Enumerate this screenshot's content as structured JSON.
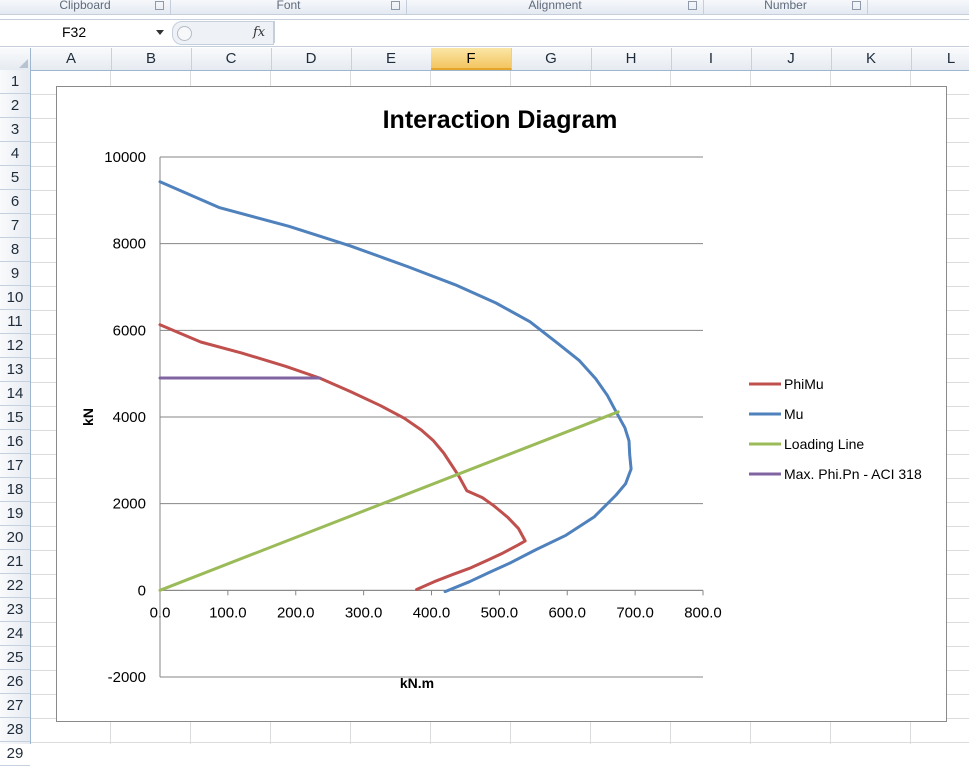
{
  "ribbon": {
    "groups": [
      "Clipboard",
      "Font",
      "Alignment",
      "Number"
    ]
  },
  "formula_bar": {
    "name_box": "F32",
    "fx_label": "fx",
    "formula": ""
  },
  "sheet": {
    "columns": [
      "A",
      "B",
      "C",
      "D",
      "E",
      "F",
      "G",
      "H",
      "I",
      "J",
      "K",
      "L"
    ],
    "selected_column": "F",
    "rows": [
      "1",
      "2",
      "3",
      "4",
      "5",
      "6",
      "7",
      "8",
      "9",
      "10",
      "11",
      "12",
      "13",
      "14",
      "15",
      "16",
      "17",
      "18",
      "19",
      "20",
      "21",
      "22",
      "23",
      "24",
      "25",
      "26",
      "27",
      "28",
      "29"
    ]
  },
  "chart_data": {
    "type": "line",
    "title": "Interaction Diagram",
    "xlabel": "kN.m",
    "ylabel": "kN",
    "xlim": [
      0,
      800
    ],
    "ylim": [
      -2000,
      10000
    ],
    "x_ticks": [
      "0.0",
      "100.0",
      "200.0",
      "300.0",
      "400.0",
      "500.0",
      "600.0",
      "700.0",
      "800.0"
    ],
    "y_ticks": [
      "10000",
      "8000",
      "6000",
      "4000",
      "2000",
      "0",
      "-2000"
    ],
    "grid": "horizontal major gridlines",
    "legend_position": "right",
    "series": [
      {
        "name": "PhiMu",
        "color": "#c0504d",
        "points": [
          [
            0,
            6130
          ],
          [
            60,
            5730
          ],
          [
            120,
            5480
          ],
          [
            185,
            5170
          ],
          [
            235,
            4900
          ],
          [
            280,
            4590
          ],
          [
            325,
            4260
          ],
          [
            360,
            3970
          ],
          [
            385,
            3700
          ],
          [
            403,
            3450
          ],
          [
            418,
            3170
          ],
          [
            430,
            2880
          ],
          [
            440,
            2640
          ],
          [
            452,
            2300
          ],
          [
            475,
            2140
          ],
          [
            492,
            1950
          ],
          [
            512,
            1690
          ],
          [
            528,
            1430
          ],
          [
            538,
            1140
          ],
          [
            528,
            1050
          ],
          [
            505,
            860
          ],
          [
            482,
            690
          ],
          [
            458,
            520
          ],
          [
            432,
            370
          ],
          [
            404,
            200
          ],
          [
            378,
            20
          ]
        ]
      },
      {
        "name": "Mu",
        "color": "#4f81bd",
        "points": [
          [
            0,
            9430
          ],
          [
            88,
            8830
          ],
          [
            190,
            8400
          ],
          [
            280,
            7950
          ],
          [
            365,
            7470
          ],
          [
            435,
            7050
          ],
          [
            495,
            6630
          ],
          [
            545,
            6200
          ],
          [
            586,
            5700
          ],
          [
            618,
            5300
          ],
          [
            642,
            4880
          ],
          [
            659,
            4500
          ],
          [
            672,
            4120
          ],
          [
            685,
            3750
          ],
          [
            691,
            3450
          ],
          [
            692,
            3130
          ],
          [
            694,
            2800
          ],
          [
            686,
            2460
          ],
          [
            672,
            2200
          ],
          [
            640,
            1700
          ],
          [
            598,
            1270
          ],
          [
            553,
            930
          ],
          [
            517,
            640
          ],
          [
            486,
            420
          ],
          [
            456,
            200
          ],
          [
            420,
            -30
          ]
        ]
      },
      {
        "name": "Loading Line",
        "color": "#9bbb59",
        "points": [
          [
            0,
            0
          ],
          [
            675,
            4120
          ]
        ]
      },
      {
        "name": "Max. Phi.Pn - ACI 318",
        "color": "#8064a2",
        "points": [
          [
            0,
            4900
          ],
          [
            235,
            4900
          ]
        ]
      }
    ]
  }
}
